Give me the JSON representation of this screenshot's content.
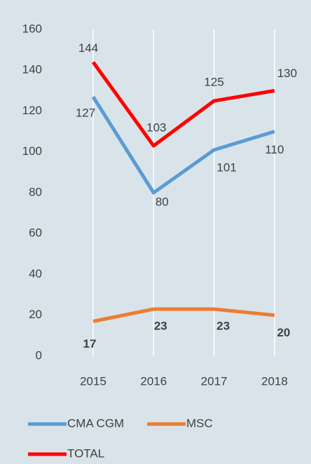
{
  "chart_data": {
    "type": "line",
    "categories": [
      "2015",
      "2016",
      "2017",
      "2018"
    ],
    "series": [
      {
        "name": "CMA CGM",
        "color": "#5b9bd5",
        "values": [
          127,
          80,
          101,
          110
        ]
      },
      {
        "name": "MSC",
        "color": "#ed7d31",
        "values": [
          17,
          23,
          23,
          20
        ]
      },
      {
        "name": "TOTAL",
        "color": "#ff0000",
        "values": [
          144,
          103,
          125,
          130
        ]
      }
    ],
    "ylim": [
      0,
      160
    ],
    "yticks": [
      0,
      20,
      40,
      60,
      80,
      100,
      120,
      140,
      160
    ],
    "grid": true
  }
}
